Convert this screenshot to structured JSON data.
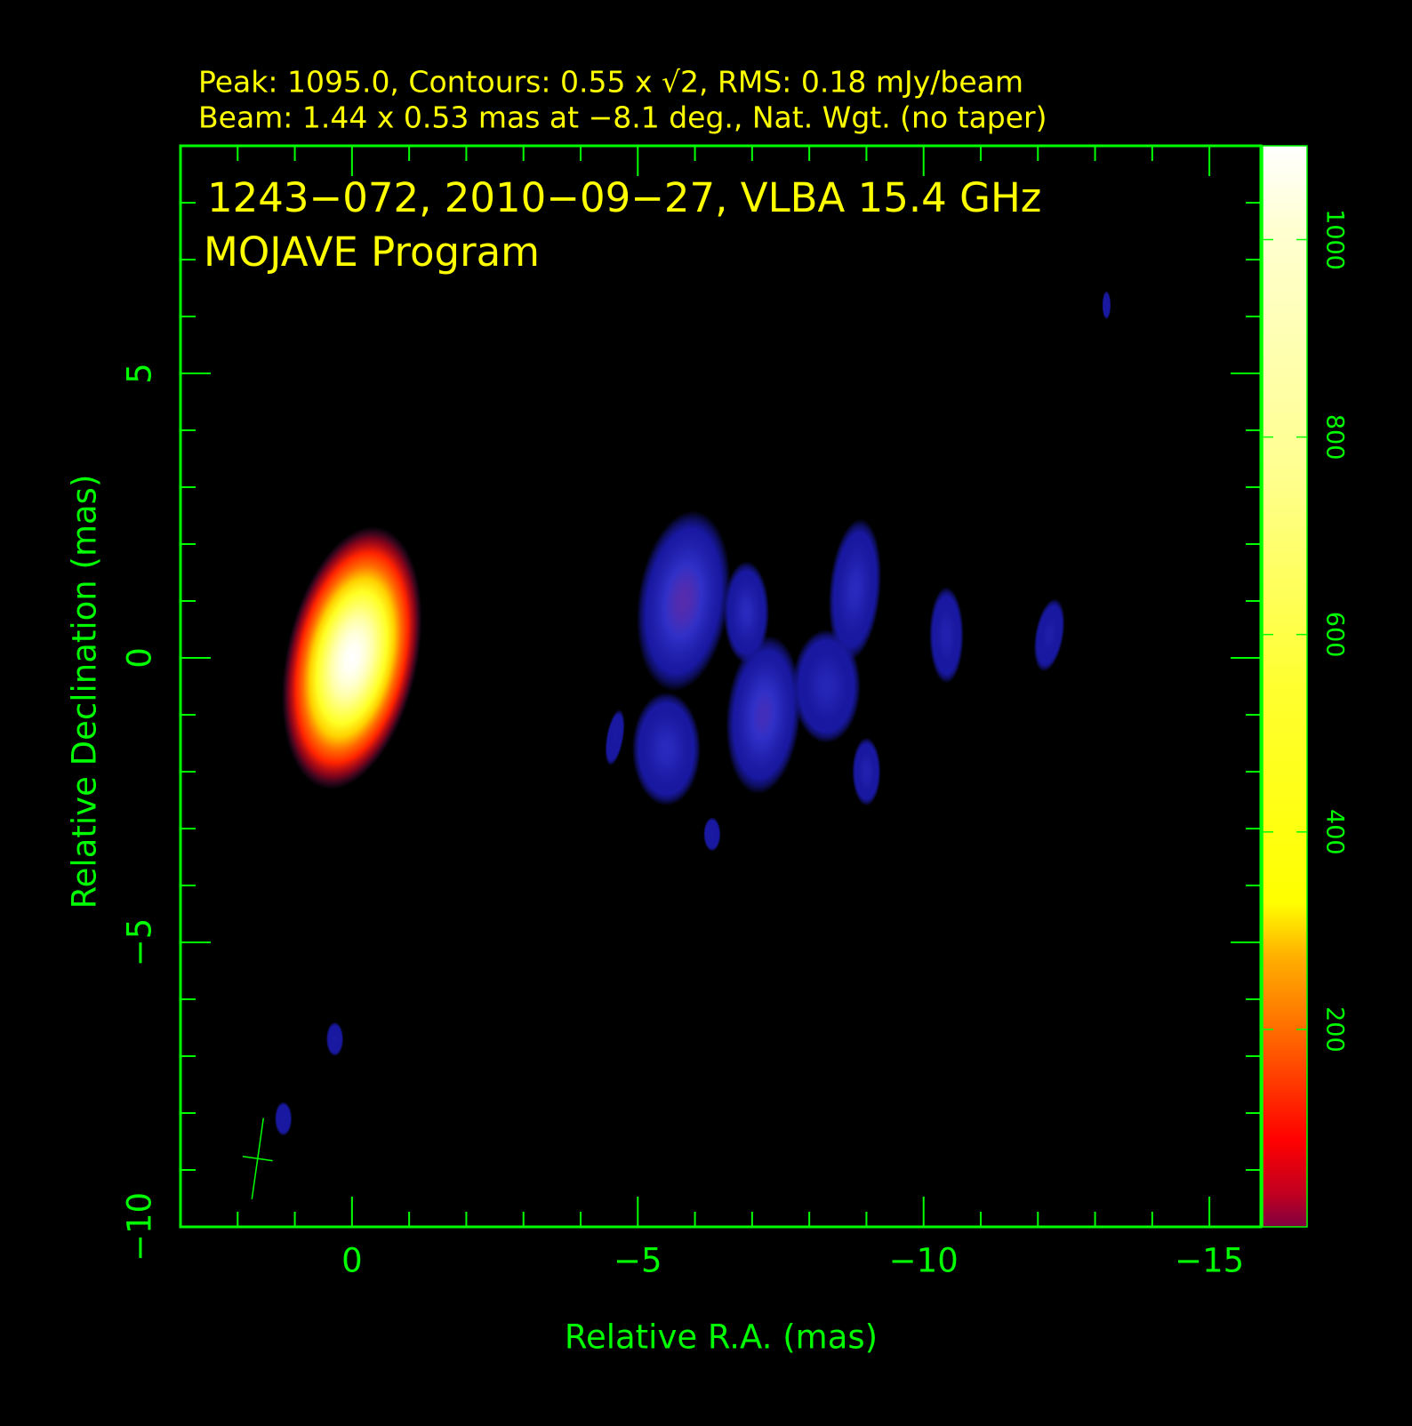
{
  "chart_data": {
    "type": "image",
    "header": [
      "Peak: 1095.0, Contours: 0.55 x √2, RMS: 0.18 mJy/beam",
      "Beam: 1.44 x 0.53 mas at −8.1 deg., Nat. Wgt. (no taper)"
    ],
    "title": "1243−072, 2010−09−27, VLBA 15.4 GHz",
    "subtitle": "MOJAVE Program",
    "xlabel": "Relative R.A. (mas)",
    "ylabel": "Relative Declination (mas)",
    "xlim": [
      3,
      -15.9
    ],
    "ylim": [
      -10,
      9
    ],
    "xticks": [
      {
        "value": 0,
        "label": "0"
      },
      {
        "value": -5,
        "label": "−5"
      },
      {
        "value": -10,
        "label": "−10"
      },
      {
        "value": -15,
        "label": "−15"
      }
    ],
    "yticks": [
      {
        "value": -10,
        "label": "−10"
      },
      {
        "value": -5,
        "label": "−5"
      },
      {
        "value": 0,
        "label": "0"
      },
      {
        "value": 5,
        "label": "5"
      }
    ],
    "xminorticks": [
      2,
      1,
      -1,
      -2,
      -3,
      -4,
      -6,
      -7,
      -8,
      -9,
      -11,
      -12,
      -13,
      -14
    ],
    "yminorticks": [
      -9,
      -8,
      -7,
      -6,
      -4,
      -3,
      -2,
      -1,
      1,
      2,
      3,
      4,
      6,
      7,
      8
    ],
    "clim": [
      0,
      1095
    ],
    "cticks": [
      200,
      400,
      600,
      800,
      1000
    ],
    "axis_color": "#00ff00",
    "text_color": "#ffff00",
    "beam": {
      "ra": 1.65,
      "dec": -8.8,
      "major": 1.44,
      "minor": 0.53,
      "pa": -8.1
    },
    "components": {
      "ra": [
        0,
        -5.8,
        -5.5,
        -7.2,
        -6.9,
        -8.8,
        -8.3,
        -9.0,
        -10.4,
        -12.2,
        -6.3,
        -13.2,
        0.3,
        1.2,
        -4.6
      ],
      "dec": [
        0,
        1.0,
        -1.6,
        -1.0,
        0.8,
        1.2,
        -0.5,
        -2.0,
        0.4,
        0.4,
        -3.1,
        6.2,
        -6.7,
        -8.1,
        -1.4
      ],
      "peak": [
        1095,
        25,
        12,
        20,
        12,
        12,
        10,
        8,
        8,
        6,
        4,
        3,
        4,
        4,
        4
      ],
      "width": [
        2.3,
        1.6,
        1.2,
        1.3,
        0.8,
        0.9,
        1.2,
        0.5,
        0.6,
        0.5,
        0.3,
        0.15,
        0.3,
        0.3,
        0.3
      ],
      "height": [
        4.7,
        3.2,
        2.0,
        2.8,
        1.8,
        2.5,
        2.0,
        1.2,
        1.7,
        1.3,
        0.6,
        0.5,
        0.6,
        0.6,
        1.0
      ],
      "pa": [
        -12,
        -8,
        0,
        -5,
        0,
        -5,
        0,
        0,
        0,
        -10,
        0,
        0,
        0,
        0,
        -10
      ]
    }
  }
}
